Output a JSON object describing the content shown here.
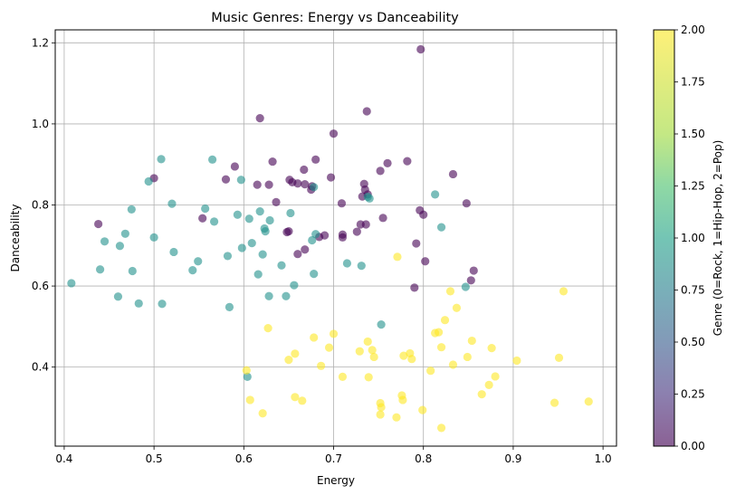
{
  "chart_data": {
    "type": "scatter",
    "title": "Music Genres: Energy vs Danceability",
    "xlabel": "Energy",
    "ylabel": "Danceability",
    "xlim": [
      0.39,
      1.015
    ],
    "ylim": [
      0.205,
      1.232
    ],
    "xticks": [
      "0.4",
      "0.5",
      "0.6",
      "0.7",
      "0.8",
      "0.9",
      "1.0"
    ],
    "yticks": [
      "0.4",
      "0.6",
      "0.8",
      "1.0",
      "1.2"
    ],
    "grid": true,
    "colorbar": {
      "label": "Genre (0=Rock, 1=Hip-Hop, 2=Pop)",
      "range": [
        0,
        2
      ],
      "ticks": [
        "0.00",
        "0.25",
        "0.50",
        "0.75",
        "1.00",
        "1.25",
        "1.50",
        "1.75",
        "2.00"
      ],
      "colormap": [
        "#440154",
        "#3b528b",
        "#21918c",
        "#5ec962",
        "#fde725"
      ]
    },
    "series": [
      {
        "genre": 0,
        "color": "#440154",
        "points": [
          [
            0.438,
            0.753
          ],
          [
            0.5,
            0.866
          ],
          [
            0.554,
            0.767
          ],
          [
            0.58,
            0.863
          ],
          [
            0.59,
            0.895
          ],
          [
            0.615,
            0.85
          ],
          [
            0.618,
            1.014
          ],
          [
            0.628,
            0.85
          ],
          [
            0.632,
            0.907
          ],
          [
            0.636,
            0.807
          ],
          [
            0.648,
            0.733
          ],
          [
            0.65,
            0.735
          ],
          [
            0.651,
            0.862
          ],
          [
            0.654,
            0.856
          ],
          [
            0.66,
            0.679
          ],
          [
            0.66,
            0.853
          ],
          [
            0.667,
            0.887
          ],
          [
            0.668,
            0.851
          ],
          [
            0.668,
            0.69
          ],
          [
            0.675,
            0.838
          ],
          [
            0.676,
            0.846
          ],
          [
            0.68,
            0.912
          ],
          [
            0.684,
            0.721
          ],
          [
            0.69,
            0.725
          ],
          [
            0.697,
            0.868
          ],
          [
            0.7,
            0.976
          ],
          [
            0.709,
            0.804
          ],
          [
            0.71,
            0.727
          ],
          [
            0.71,
            0.72
          ],
          [
            0.726,
            0.734
          ],
          [
            0.73,
            0.752
          ],
          [
            0.732,
            0.821
          ],
          [
            0.734,
            0.852
          ],
          [
            0.735,
            0.838
          ],
          [
            0.737,
            1.031
          ],
          [
            0.736,
            0.752
          ],
          [
            0.738,
            0.826
          ],
          [
            0.752,
            0.884
          ],
          [
            0.755,
            0.768
          ],
          [
            0.76,
            0.903
          ],
          [
            0.782,
            0.908
          ],
          [
            0.79,
            0.596
          ],
          [
            0.792,
            0.705
          ],
          [
            0.796,
            0.787
          ],
          [
            0.797,
            1.184
          ],
          [
            0.8,
            0.776
          ],
          [
            0.802,
            0.661
          ],
          [
            0.833,
            0.876
          ],
          [
            0.848,
            0.804
          ],
          [
            0.853,
            0.614
          ],
          [
            0.856,
            0.638
          ]
        ]
      },
      {
        "genre": 1,
        "color": "#21918c",
        "points": [
          [
            0.408,
            0.607
          ],
          [
            0.44,
            0.641
          ],
          [
            0.445,
            0.71
          ],
          [
            0.46,
            0.574
          ],
          [
            0.462,
            0.699
          ],
          [
            0.468,
            0.729
          ],
          [
            0.475,
            0.789
          ],
          [
            0.476,
            0.637
          ],
          [
            0.483,
            0.557
          ],
          [
            0.494,
            0.858
          ],
          [
            0.5,
            0.72
          ],
          [
            0.508,
            0.913
          ],
          [
            0.509,
            0.556
          ],
          [
            0.52,
            0.803
          ],
          [
            0.522,
            0.684
          ],
          [
            0.543,
            0.639
          ],
          [
            0.549,
            0.661
          ],
          [
            0.557,
            0.791
          ],
          [
            0.565,
            0.912
          ],
          [
            0.567,
            0.759
          ],
          [
            0.582,
            0.674
          ],
          [
            0.584,
            0.548
          ],
          [
            0.593,
            0.776
          ],
          [
            0.597,
            0.862
          ],
          [
            0.598,
            0.694
          ],
          [
            0.604,
            0.376
          ],
          [
            0.606,
            0.766
          ],
          [
            0.609,
            0.706
          ],
          [
            0.616,
            0.629
          ],
          [
            0.618,
            0.784
          ],
          [
            0.621,
            0.678
          ],
          [
            0.623,
            0.742
          ],
          [
            0.624,
            0.735
          ],
          [
            0.628,
            0.575
          ],
          [
            0.629,
            0.762
          ],
          [
            0.642,
            0.651
          ],
          [
            0.647,
            0.575
          ],
          [
            0.652,
            0.78
          ],
          [
            0.656,
            0.602
          ],
          [
            0.676,
            0.713
          ],
          [
            0.678,
            0.63
          ],
          [
            0.678,
            0.844
          ],
          [
            0.68,
            0.728
          ],
          [
            0.715,
            0.656
          ],
          [
            0.731,
            0.65
          ],
          [
            0.738,
            0.82
          ],
          [
            0.74,
            0.816
          ],
          [
            0.753,
            0.505
          ],
          [
            0.813,
            0.826
          ],
          [
            0.82,
            0.745
          ],
          [
            0.847,
            0.598
          ]
        ]
      },
      {
        "genre": 2,
        "color": "#fde725",
        "points": [
          [
            0.603,
            0.392
          ],
          [
            0.607,
            0.319
          ],
          [
            0.621,
            0.286
          ],
          [
            0.627,
            0.496
          ],
          [
            0.65,
            0.418
          ],
          [
            0.657,
            0.433
          ],
          [
            0.657,
            0.326
          ],
          [
            0.665,
            0.317
          ],
          [
            0.678,
            0.473
          ],
          [
            0.686,
            0.403
          ],
          [
            0.695,
            0.448
          ],
          [
            0.7,
            0.482
          ],
          [
            0.71,
            0.376
          ],
          [
            0.729,
            0.439
          ],
          [
            0.738,
            0.463
          ],
          [
            0.739,
            0.375
          ],
          [
            0.743,
            0.442
          ],
          [
            0.745,
            0.425
          ],
          [
            0.752,
            0.311
          ],
          [
            0.752,
            0.283
          ],
          [
            0.753,
            0.301
          ],
          [
            0.77,
            0.276
          ],
          [
            0.771,
            0.672
          ],
          [
            0.776,
            0.33
          ],
          [
            0.777,
            0.319
          ],
          [
            0.778,
            0.428
          ],
          [
            0.785,
            0.434
          ],
          [
            0.787,
            0.42
          ],
          [
            0.799,
            0.294
          ],
          [
            0.808,
            0.391
          ],
          [
            0.813,
            0.484
          ],
          [
            0.817,
            0.486
          ],
          [
            0.82,
            0.449
          ],
          [
            0.82,
            0.25
          ],
          [
            0.824,
            0.516
          ],
          [
            0.83,
            0.587
          ],
          [
            0.833,
            0.406
          ],
          [
            0.837,
            0.546
          ],
          [
            0.849,
            0.425
          ],
          [
            0.854,
            0.465
          ],
          [
            0.865,
            0.333
          ],
          [
            0.873,
            0.356
          ],
          [
            0.876,
            0.447
          ],
          [
            0.88,
            0.377
          ],
          [
            0.904,
            0.416
          ],
          [
            0.946,
            0.312
          ],
          [
            0.951,
            0.423
          ],
          [
            0.956,
            0.587
          ],
          [
            0.984,
            0.315
          ]
        ]
      }
    ]
  }
}
